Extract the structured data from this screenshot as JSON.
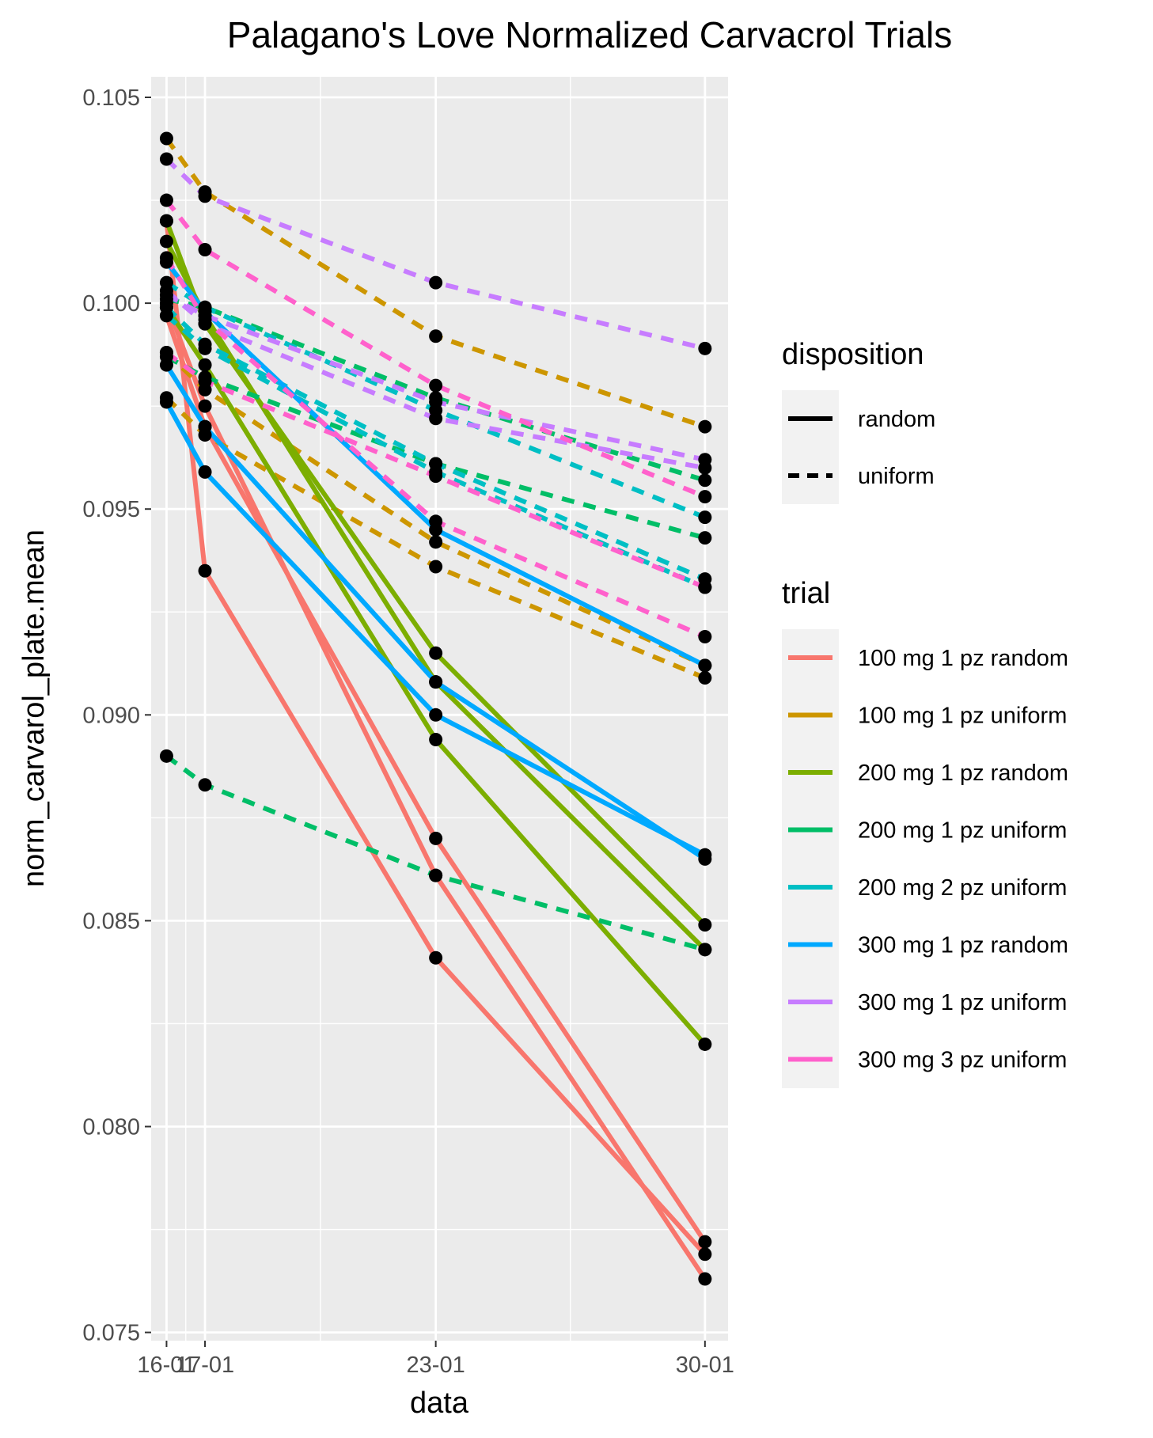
{
  "chart_data": {
    "type": "line",
    "title": "Palagano's Love Normalized Carvacrol Trials",
    "xlabel": "data",
    "ylabel": "norm_carvarol_plate.mean",
    "x_ticks": [
      "16-01",
      "17-01",
      "23-01",
      "30-01"
    ],
    "x_days": [
      16,
      17,
      23,
      30
    ],
    "xlim": [
      15.6,
      30.6
    ],
    "ylim": [
      0.0748,
      0.1055
    ],
    "y_ticks": [
      0.075,
      0.08,
      0.085,
      0.09,
      0.095,
      0.1,
      0.105
    ],
    "y_tick_labels": [
      "0.075",
      "0.080",
      "0.085",
      "0.090",
      "0.095",
      "0.100",
      "0.105"
    ],
    "grid": true,
    "panel_background": "#ebebeb",
    "legends": {
      "disposition": {
        "title": "disposition",
        "entries": [
          {
            "label": "random",
            "linetype": "solid"
          },
          {
            "label": "uniform",
            "linetype": "dashed"
          }
        ]
      },
      "trial": {
        "title": "trial",
        "entries": [
          {
            "label": "100 mg 1 pz random",
            "color": "#F8766D"
          },
          {
            "label": "100 mg 1 pz uniform",
            "color": "#CD9600"
          },
          {
            "label": "200 mg 1 pz random",
            "color": "#7CAE00"
          },
          {
            "label": "200 mg 1 pz uniform",
            "color": "#00BE67"
          },
          {
            "label": "200 mg 2 pz uniform",
            "color": "#00BFC4"
          },
          {
            "label": "300 mg 1 pz random",
            "color": "#00A9FF"
          },
          {
            "label": "300 mg 1 pz uniform",
            "color": "#C77CFF"
          },
          {
            "label": "300 mg 3 pz uniform",
            "color": "#FF61CC"
          }
        ]
      }
    },
    "point_color": "#000000",
    "series": [
      {
        "trial": "100 mg 1 pz random",
        "disposition": "random",
        "values": [
          0.102,
          0.0935,
          0.0841,
          0.0769
        ]
      },
      {
        "trial": "100 mg 1 pz random",
        "disposition": "random",
        "values": [
          0.1,
          0.0975,
          0.0861,
          0.0763
        ]
      },
      {
        "trial": "100 mg 1 pz random",
        "disposition": "random",
        "values": [
          0.0997,
          0.097,
          0.087,
          0.0772
        ]
      },
      {
        "trial": "100 mg 1 pz uniform",
        "disposition": "uniform",
        "values": [
          0.104,
          0.1027,
          0.0992,
          0.097
        ]
      },
      {
        "trial": "100 mg 1 pz uniform",
        "disposition": "uniform",
        "values": [
          0.0977,
          0.0968,
          0.0936,
          0.0909
        ]
      },
      {
        "trial": "100 mg 1 pz uniform",
        "disposition": "uniform",
        "values": [
          0.0988,
          0.0979,
          0.0942,
          0.0912
        ]
      },
      {
        "trial": "200 mg 1 pz random",
        "disposition": "random",
        "values": [
          0.102,
          0.0995,
          0.0915,
          0.0849
        ]
      },
      {
        "trial": "200 mg 1 pz random",
        "disposition": "random",
        "values": [
          0.1015,
          0.0997,
          0.0908,
          0.0843
        ]
      },
      {
        "trial": "200 mg 1 pz random",
        "disposition": "random",
        "values": [
          0.0999,
          0.0985,
          0.0894,
          0.082
        ]
      },
      {
        "trial": "200 mg 1 pz uniform",
        "disposition": "uniform",
        "values": [
          0.089,
          0.0883,
          0.0861,
          0.0843
        ]
      },
      {
        "trial": "200 mg 1 pz uniform",
        "disposition": "uniform",
        "values": [
          0.1001,
          0.0999,
          0.0977,
          0.0957
        ]
      },
      {
        "trial": "200 mg 1 pz uniform",
        "disposition": "uniform",
        "values": [
          0.0987,
          0.0982,
          0.0961,
          0.0943
        ]
      },
      {
        "trial": "200 mg 2 pz uniform",
        "disposition": "uniform",
        "values": [
          0.0997,
          0.0989,
          0.0959,
          0.0931
        ]
      },
      {
        "trial": "200 mg 2 pz uniform",
        "disposition": "uniform",
        "values": [
          0.0999,
          0.099,
          0.0961,
          0.0933
        ]
      },
      {
        "trial": "200 mg 2 pz uniform",
        "disposition": "uniform",
        "values": [
          0.1005,
          0.0999,
          0.0974,
          0.0948
        ]
      },
      {
        "trial": "300 mg 1 pz random",
        "disposition": "random",
        "values": [
          0.101,
          0.0998,
          0.0945,
          0.0912
        ]
      },
      {
        "trial": "300 mg 1 pz random",
        "disposition": "random",
        "values": [
          0.0985,
          0.097,
          0.0908,
          0.0865
        ]
      },
      {
        "trial": "300 mg 1 pz random",
        "disposition": "random",
        "values": [
          0.0976,
          0.0959,
          0.09,
          0.0866
        ]
      },
      {
        "trial": "300 mg 1 pz uniform",
        "disposition": "uniform",
        "values": [
          0.1035,
          0.1026,
          0.1005,
          0.0989
        ]
      },
      {
        "trial": "300 mg 1 pz uniform",
        "disposition": "uniform",
        "values": [
          0.1003,
          0.0995,
          0.0972,
          0.096
        ]
      },
      {
        "trial": "300 mg 1 pz uniform",
        "disposition": "uniform",
        "values": [
          0.1002,
          0.0997,
          0.0976,
          0.0962
        ]
      },
      {
        "trial": "300 mg 3 pz uniform",
        "disposition": "uniform",
        "values": [
          0.1025,
          0.1013,
          0.098,
          0.0953
        ]
      },
      {
        "trial": "300 mg 3 pz uniform",
        "disposition": "uniform",
        "values": [
          0.1011,
          0.0996,
          0.0947,
          0.0919
        ]
      },
      {
        "trial": "300 mg 3 pz uniform",
        "disposition": "uniform",
        "values": [
          0.0988,
          0.0981,
          0.0958,
          0.0931
        ]
      }
    ]
  }
}
